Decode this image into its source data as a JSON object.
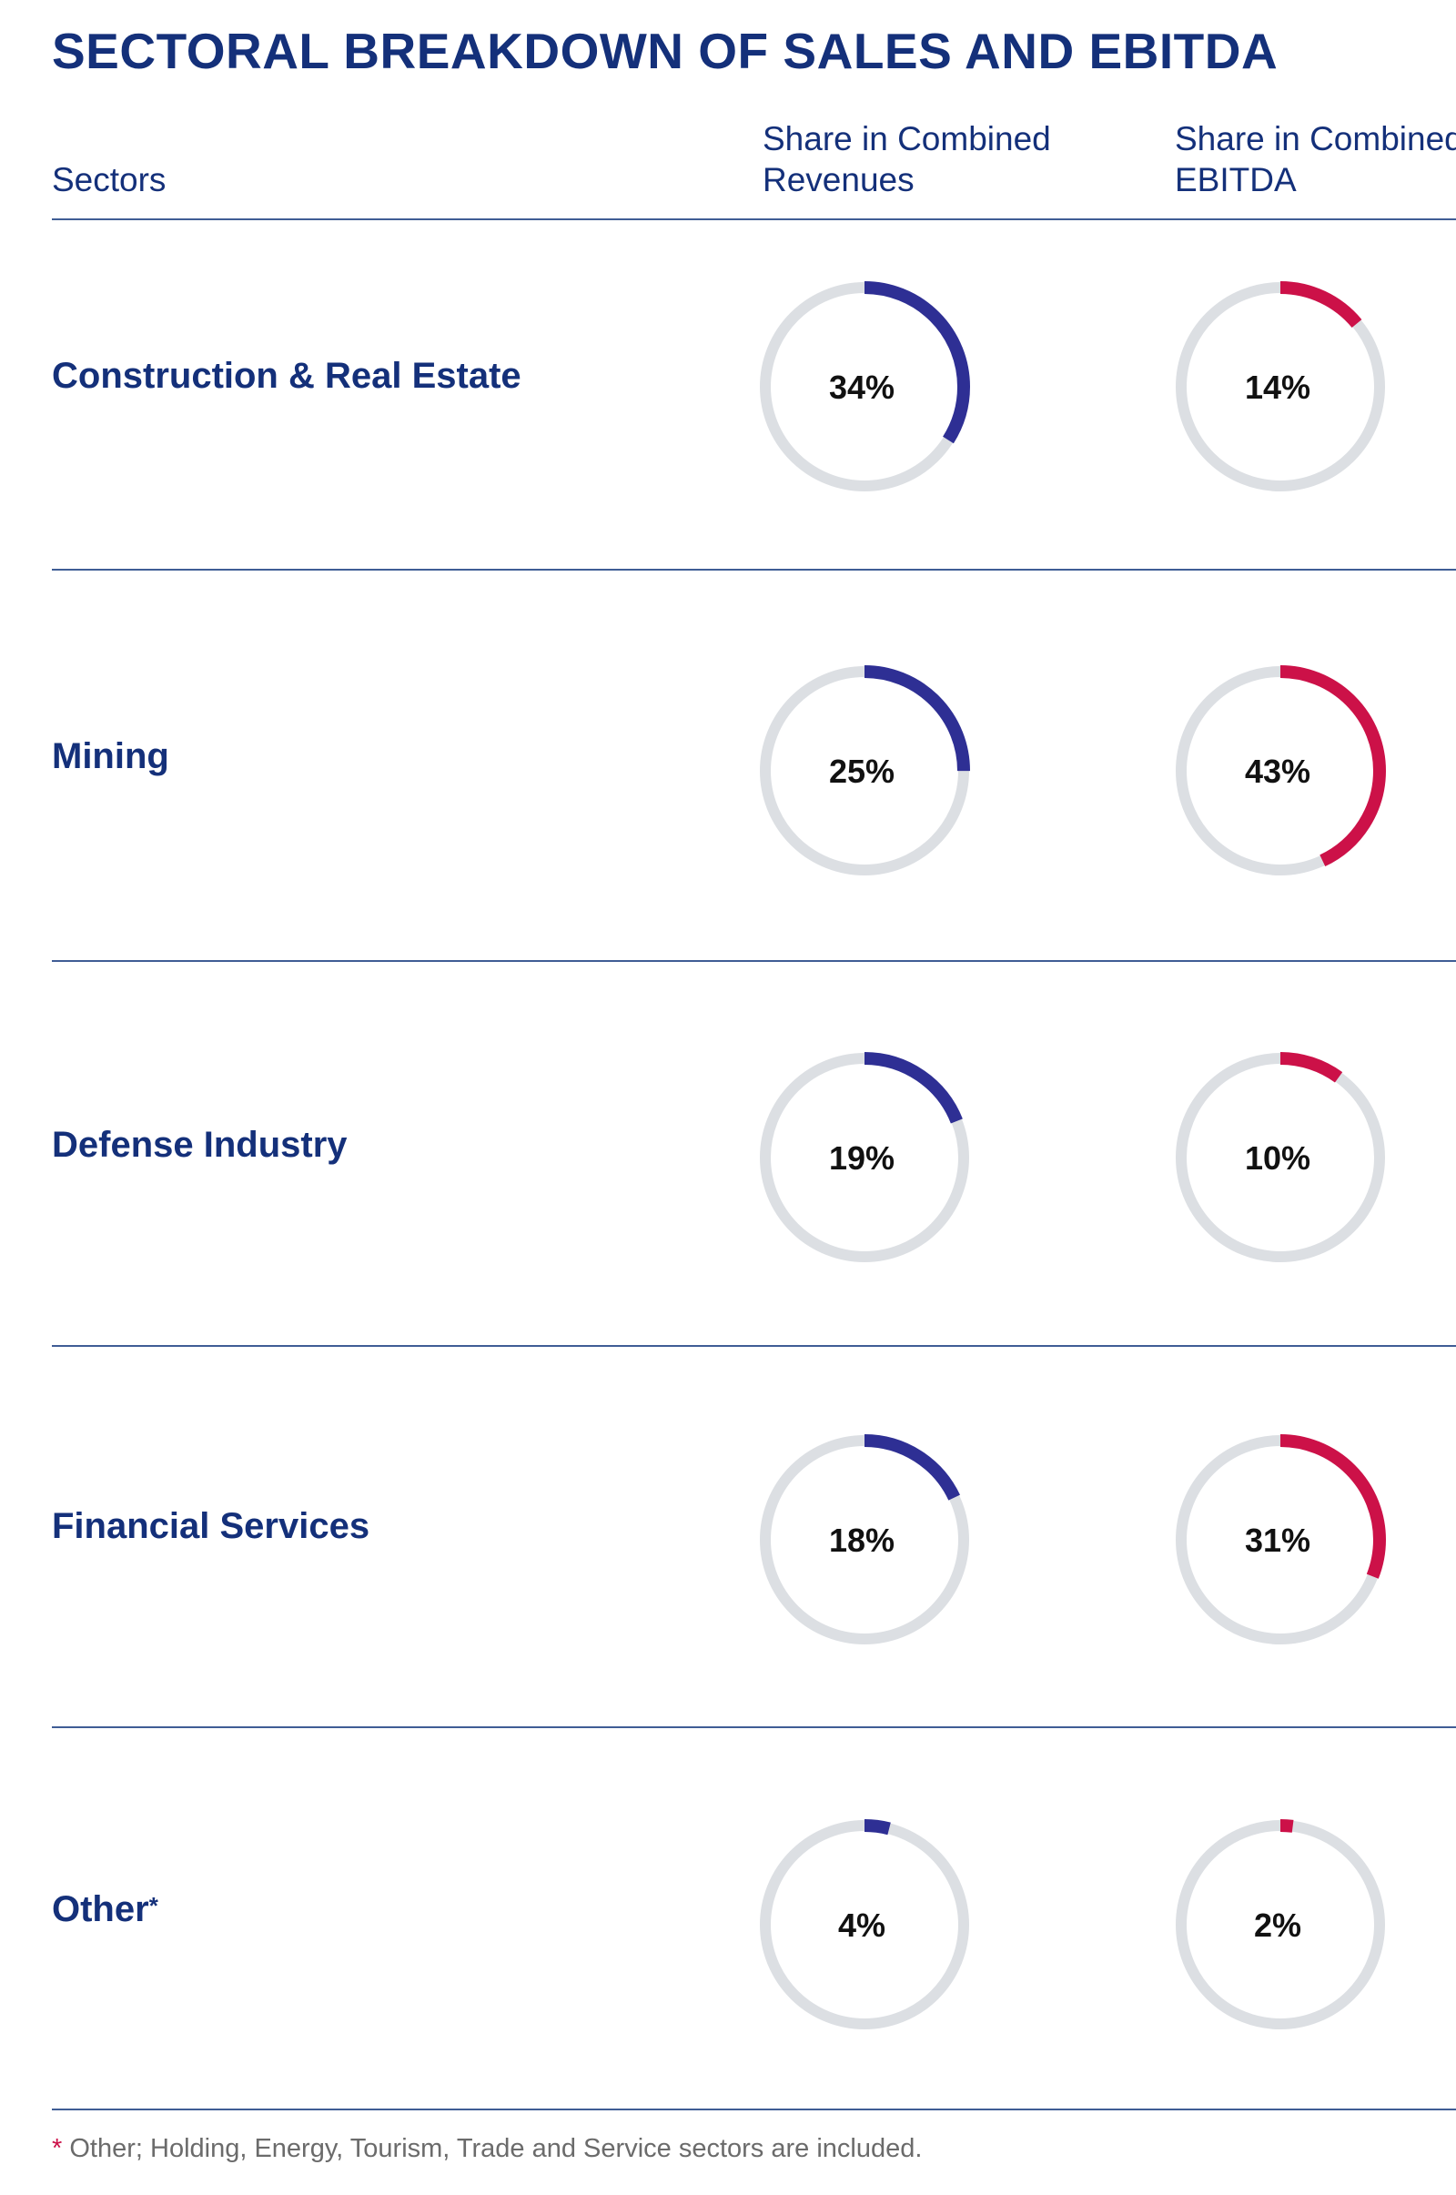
{
  "title": "SECTORAL BREAKDOWN OF SALES AND EBITDA",
  "headers": {
    "sectors": "Sectors",
    "revenues_line1": "Share in Combined",
    "revenues_line2": "Revenues",
    "ebitda_line1": "Share in Combined",
    "ebitda_line2": "EBITDA"
  },
  "footnote": {
    "star": "*",
    "text": " Other; Holding, Energy, Tourism, Trade and Service sectors are included."
  },
  "colors": {
    "revenues": "#2e2f94",
    "ebitda": "#cc1148",
    "track": "#dcdfe3"
  },
  "chart_data": {
    "type": "donut",
    "title": "SECTORAL BREAKDOWN OF SALES AND EBITDA",
    "categories": [
      "Construction & Real Estate",
      "Mining",
      "Defense Industry",
      "Financial Services",
      "Other*"
    ],
    "series": [
      {
        "name": "Share in Combined Revenues",
        "values": [
          34,
          25,
          19,
          18,
          4
        ],
        "labels": [
          "34%",
          "25%",
          "19%",
          "18%",
          "4%"
        ]
      },
      {
        "name": "Share in Combined EBITDA",
        "values": [
          14,
          43,
          10,
          31,
          2
        ],
        "labels": [
          "14%",
          "43%",
          "10%",
          "31%",
          "2%"
        ]
      }
    ],
    "unit": "%"
  }
}
